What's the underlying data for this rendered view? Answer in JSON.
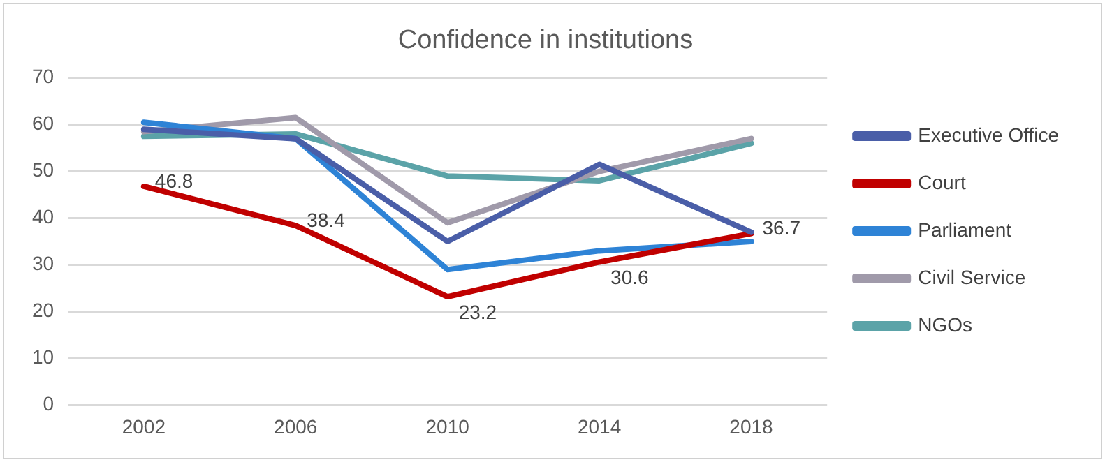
{
  "chart_data": {
    "type": "line",
    "title": "Confidence in institutions",
    "categories": [
      "2002",
      "2006",
      "2010",
      "2014",
      "2018"
    ],
    "series": [
      {
        "name": "Executive Office",
        "color": "#4a5ea8",
        "values": [
          59,
          57,
          35,
          51.5,
          37
        ]
      },
      {
        "name": "Court",
        "color": "#c00000",
        "values": [
          46.8,
          38.4,
          23.2,
          30.6,
          36.7
        ],
        "value_labels": [
          "46.8",
          "38.4",
          "23.2",
          "30.6",
          "36.7"
        ]
      },
      {
        "name": "Parliament",
        "color": "#2e83d6",
        "values": [
          60.5,
          57,
          29,
          33,
          35
        ]
      },
      {
        "name": "Civil Service",
        "color": "#a09aaa",
        "values": [
          58.5,
          61.5,
          39,
          50,
          57
        ]
      },
      {
        "name": "NGOs",
        "color": "#5ba3a8",
        "values": [
          57.5,
          58,
          49,
          48,
          56
        ]
      }
    ],
    "ylim": [
      0,
      70
    ],
    "yticks": [
      0,
      10,
      20,
      30,
      40,
      50,
      60,
      70
    ],
    "grid": "y",
    "legend": "right",
    "marker": "none",
    "line_style": "solid"
  }
}
